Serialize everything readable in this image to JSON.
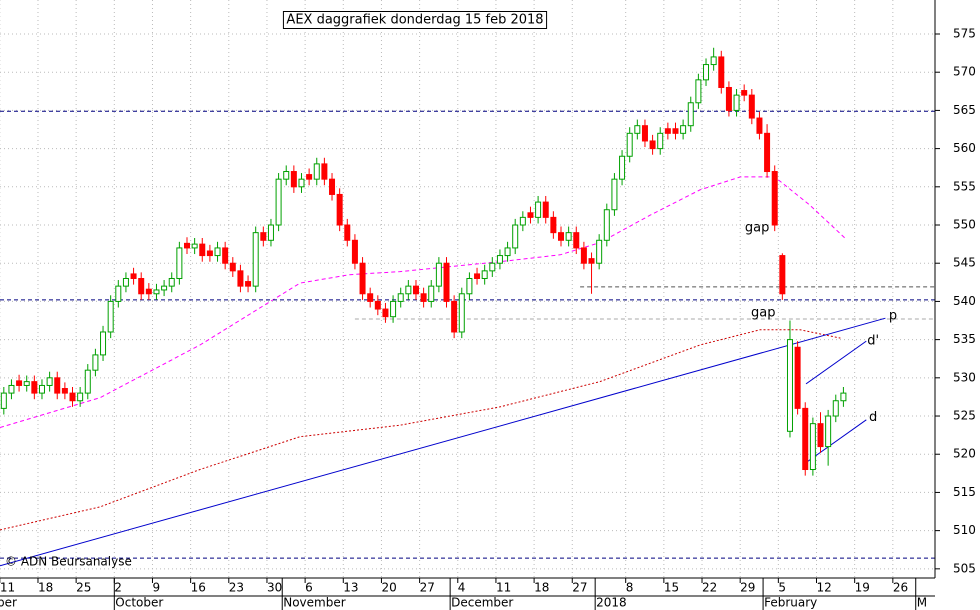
{
  "chart_data": {
    "type": "candlestick",
    "title": "AEX daggrafiek donderdag 15 feb 2018",
    "credit": "© ADN Beursanalyse",
    "xlim": [
      -0.5,
      122
    ],
    "ylim": [
      503.8,
      579.45
    ],
    "yticks": [
      505,
      510,
      515,
      520,
      525,
      530,
      535,
      540,
      545,
      550,
      555,
      560,
      565,
      570,
      575
    ],
    "xticks": [
      {
        "value": 0,
        "label": "11"
      },
      {
        "value": 5,
        "label": "18"
      },
      {
        "value": 10,
        "label": "25"
      },
      {
        "value": 15,
        "label": "2"
      },
      {
        "value": 20,
        "label": "9"
      },
      {
        "value": 25,
        "label": "16"
      },
      {
        "value": 30,
        "label": "23"
      },
      {
        "value": 35,
        "label": "30"
      },
      {
        "value": 40,
        "label": "6"
      },
      {
        "value": 45,
        "label": "13"
      },
      {
        "value": 50,
        "label": "20"
      },
      {
        "value": 55,
        "label": "27"
      },
      {
        "value": 60,
        "label": "4"
      },
      {
        "value": 65,
        "label": "11"
      },
      {
        "value": 70,
        "label": "18"
      },
      {
        "value": 75,
        "label": "27"
      },
      {
        "value": 82,
        "label": "8"
      },
      {
        "value": 87,
        "label": "15"
      },
      {
        "value": 92,
        "label": "22"
      },
      {
        "value": 97,
        "label": "29"
      },
      {
        "value": 102,
        "label": "5"
      },
      {
        "value": 107,
        "label": "12"
      },
      {
        "value": 112,
        "label": "19"
      },
      {
        "value": 117,
        "label": "26"
      }
    ],
    "months": [
      {
        "value": -0.5,
        "label": "ber"
      },
      {
        "value": 15,
        "label": "October"
      },
      {
        "value": 37,
        "label": "November"
      },
      {
        "value": 59,
        "label": "December"
      },
      {
        "value": 78,
        "label": "2018"
      },
      {
        "value": 100,
        "label": "February"
      },
      {
        "value": 120,
        "label": "M"
      }
    ],
    "grid": true,
    "up_color": "#00a000",
    "down_color": "#ff0000",
    "open": [
      526,
      528,
      529.6,
      529,
      529.5,
      528,
      529,
      530,
      528.6,
      528,
      527,
      528,
      531,
      533,
      536,
      540,
      542,
      543.6,
      543,
      541.6,
      541,
      541.5,
      542,
      543,
      547.6,
      547,
      547.5,
      546.6,
      546,
      547,
      545,
      544,
      542.6,
      542,
      549,
      548,
      550,
      556,
      557,
      555,
      556.6,
      556,
      558,
      556,
      554,
      550,
      548,
      545,
      541,
      540,
      539,
      538,
      540,
      541,
      542,
      541,
      540,
      542,
      545,
      540,
      536,
      541,
      543.6,
      543,
      544,
      545,
      546,
      547,
      550,
      551.6,
      551,
      553,
      551,
      549,
      548,
      549,
      547,
      545.6,
      545,
      548,
      552,
      556,
      559,
      562,
      563,
      561,
      560,
      562.6,
      562.6,
      562,
      563,
      566,
      569,
      571,
      572,
      568,
      565,
      567.6,
      567,
      564,
      562,
      557,
      546,
      523,
      534,
      526,
      518,
      524,
      521,
      525,
      527
    ],
    "high": [
      528.8,
      529.8,
      530.4,
      530.3,
      530.3,
      529.8,
      530.8,
      530.8,
      529.4,
      528.8,
      528.8,
      531.8,
      533.8,
      536.8,
      540.8,
      542.8,
      543.8,
      544.4,
      543.8,
      542.4,
      542.3,
      542.8,
      543.8,
      547.8,
      548.4,
      548.3,
      548.3,
      547.4,
      547.8,
      547.8,
      545.8,
      544.8,
      543.4,
      549.8,
      549.8,
      550.8,
      556.8,
      557.8,
      557.8,
      556.8,
      557.4,
      558.8,
      558.8,
      556.8,
      554.8,
      550.8,
      548.8,
      545.8,
      541.8,
      540.8,
      539.8,
      540.8,
      541.8,
      542.8,
      542.8,
      541.8,
      542.8,
      545.8,
      545.8,
      540.8,
      541.8,
      543.8,
      544.4,
      544.8,
      545.8,
      546.8,
      547.8,
      550.8,
      551.8,
      552.4,
      553.8,
      553.8,
      551.8,
      549.8,
      549.8,
      549.8,
      547.8,
      546.4,
      548.8,
      552.8,
      556.8,
      559.8,
      562.8,
      563.8,
      563.8,
      561.8,
      562.8,
      563.4,
      563.4,
      563.8,
      566.8,
      569.8,
      571.8,
      573.2,
      572.8,
      568.8,
      567.8,
      568.4,
      567.8,
      564.8,
      563.2,
      557.8,
      546.3,
      537.5,
      534.8,
      526.8,
      524.8,
      525.5,
      525.8,
      527.8,
      528.8
    ],
    "low": [
      525.2,
      527.2,
      528.2,
      528.2,
      527.2,
      527.2,
      528.2,
      527.2,
      527.2,
      526.2,
      526.2,
      527.2,
      530.2,
      532.2,
      535.2,
      539.2,
      541.2,
      542.2,
      540.2,
      540.2,
      540.2,
      540.7,
      541.2,
      542.2,
      546.2,
      546.2,
      545.2,
      545.2,
      545.2,
      544.2,
      543.2,
      541.2,
      541.2,
      541.2,
      547.2,
      547.2,
      549.2,
      555.2,
      554.2,
      554.2,
      555.2,
      555.2,
      555.2,
      553.2,
      549.2,
      547.2,
      544.2,
      540.2,
      539.2,
      538.2,
      537.2,
      537.2,
      539.2,
      540.2,
      540.2,
      539.2,
      539.2,
      541.2,
      539.2,
      535.2,
      535.2,
      540.2,
      542.2,
      542.2,
      543.2,
      544.2,
      545.2,
      546.2,
      549.2,
      550.2,
      550.2,
      550.2,
      548.2,
      547.2,
      547.2,
      546.2,
      544.2,
      541,
      544.2,
      547.2,
      551.2,
      555.2,
      558.2,
      561.2,
      560.2,
      559.2,
      559.2,
      561.2,
      561.2,
      561.2,
      562.2,
      565.2,
      568.2,
      570.2,
      567.2,
      564.2,
      564.2,
      566.2,
      563.2,
      561.2,
      556.2,
      549.2,
      540.2,
      522.2,
      525.2,
      517.2,
      517.2,
      520.2,
      518.5,
      524.2,
      526.2
    ],
    "close": [
      528,
      529,
      529,
      529.5,
      528,
      529,
      530,
      528,
      528,
      527,
      528,
      531,
      533,
      536,
      540,
      542,
      543,
      543,
      541,
      541,
      541.5,
      542,
      543,
      547,
      547,
      547.5,
      546,
      546,
      547,
      545,
      544,
      542,
      542,
      549,
      548,
      550,
      556,
      557,
      555,
      556,
      556,
      558,
      556,
      554,
      550,
      548,
      545,
      541,
      540,
      539,
      538,
      540,
      541,
      542,
      541,
      540,
      542,
      545,
      540,
      536,
      541,
      543,
      543,
      544,
      545,
      546,
      547,
      550,
      551,
      551,
      553,
      551,
      549,
      548,
      549,
      547,
      545,
      545,
      548,
      552,
      556,
      559,
      562,
      563,
      561,
      560,
      562,
      562,
      562,
      563,
      566,
      569,
      571,
      572,
      568,
      565,
      567,
      567,
      564,
      562,
      557,
      550,
      541,
      535,
      526,
      518,
      524,
      521,
      525,
      527,
      528
    ],
    "series": [
      {
        "color": "#ff00ff",
        "style": "dashed",
        "x": [
          -0.5,
          12.6,
          25.7,
          38.8,
          45.3,
          51.9,
          65,
          72.9,
          78.1,
          84.7,
          91.2,
          96.5,
          101,
          105.6,
          110.2
        ],
        "values": [
          523.5,
          527.4,
          534.3,
          542.4,
          543.5,
          543.9,
          545.2,
          546.1,
          547.7,
          551.3,
          554.6,
          556.3,
          556.3,
          552.6,
          548.3
        ]
      },
      {
        "color": "#cc0000",
        "style": "dotted",
        "x": [
          -0.5,
          12.6,
          25.7,
          38.8,
          51.9,
          65,
          78.1,
          91.2,
          99.1,
          104.3,
          109.6
        ],
        "values": [
          510.1,
          513.1,
          518,
          522.3,
          523.8,
          526.2,
          529.5,
          534.3,
          536.3,
          536.3,
          535.2
        ]
      },
      {
        "color": "#000080",
        "style": "dashed",
        "x": [
          -0.5,
          122
        ],
        "values": [
          564.9,
          564.9
        ]
      },
      {
        "color": "#000080",
        "style": "dashed",
        "x": [
          -0.5,
          122
        ],
        "values": [
          540.2,
          540.2
        ]
      },
      {
        "color": "#000080",
        "style": "dashed",
        "x": [
          -0.5,
          122
        ],
        "values": [
          506.4,
          506.4
        ]
      },
      {
        "color": "#555555",
        "style": "dashed",
        "x": [
          75.5,
          122
        ],
        "values": [
          541.9,
          541.9
        ]
      },
      {
        "color": "#aaaaaa",
        "style": "dashed",
        "x": [
          46,
          122
        ],
        "values": [
          537.7,
          537.7
        ]
      },
      {
        "color": "#0000cc",
        "style": "solid",
        "x": [
          -0.5,
          115.5
        ],
        "values": [
          505.4,
          537.8
        ]
      },
      {
        "color": "#0000cc",
        "style": "solid",
        "x": [
          105.1,
          113
        ],
        "values": [
          529.2,
          534.8
        ]
      },
      {
        "color": "#0000cc",
        "style": "solid",
        "x": [
          105.1,
          113
        ],
        "values": [
          518.9,
          524.5
        ]
      }
    ],
    "annotations": [
      {
        "text": "gap",
        "x": 98.7,
        "y": 549.6,
        "color": "#000000"
      },
      {
        "text": "gap",
        "x": 99.5,
        "y": 538.5,
        "color": "#000000"
      },
      {
        "text": "p",
        "x": 116.5,
        "y": 538.1,
        "color": "#0000cc"
      },
      {
        "text": "d'",
        "x": 113.9,
        "y": 534.8,
        "color": "#0000cc"
      },
      {
        "text": "d",
        "x": 113.9,
        "y": 524.8,
        "color": "#0000cc"
      }
    ]
  }
}
